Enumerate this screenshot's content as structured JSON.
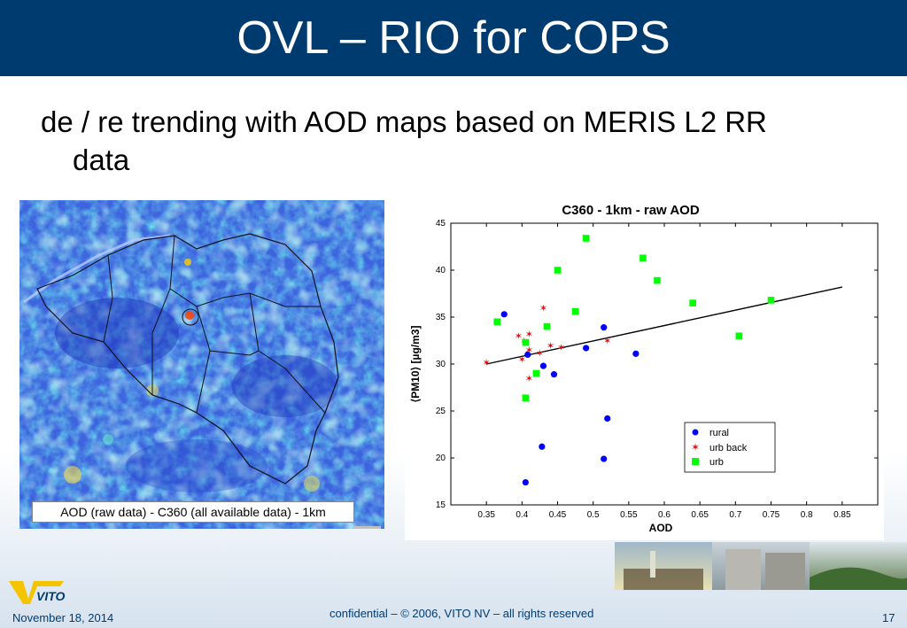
{
  "slide": {
    "title": "OVL – RIO for COPS",
    "bullet_line1": "de / re trending with AOD maps based on MERIS L2 RR",
    "bullet_line2": "data",
    "map_caption": "AOD (raw data) - C360 (all available data) - 1km",
    "footer_date": "November 18, 2014",
    "footer_confidential": "confidential – © 2006, VITO NV – all rights reserved",
    "page_number": "17",
    "logo_text": "VITO"
  },
  "colors": {
    "title_bar": "#003b6f",
    "rural": "#0000ff",
    "urb_back": "#ff0000",
    "urb": "#00ff00",
    "map_base": "#3a5fe0"
  },
  "chart_data": {
    "type": "scatter",
    "title": "C360 - 1km - raw  AOD",
    "xlabel": "AOD",
    "ylabel": "⟨PM10⟩ [µg/m3]",
    "xlim": [
      0.3,
      0.9
    ],
    "ylim": [
      15,
      45
    ],
    "xticks": [
      "0.35",
      "0.4",
      "0.45",
      "0.5",
      "0.55",
      "0.6",
      "0.65",
      "0.7",
      "0.75",
      "0.8",
      "0.85"
    ],
    "yticks": [
      "15",
      "20",
      "25",
      "30",
      "35",
      "40",
      "45"
    ],
    "legend_position": "lower-right",
    "series": [
      {
        "name": "rural",
        "marker": "circle",
        "points": [
          [
            0.375,
            35.3
          ],
          [
            0.408,
            31.0
          ],
          [
            0.43,
            29.8
          ],
          [
            0.445,
            28.9
          ],
          [
            0.49,
            31.7
          ],
          [
            0.515,
            33.9
          ],
          [
            0.52,
            24.2
          ],
          [
            0.56,
            31.1
          ],
          [
            0.428,
            21.2
          ],
          [
            0.515,
            19.9
          ],
          [
            0.405,
            17.4
          ]
        ]
      },
      {
        "name": "urb back",
        "marker": "star",
        "points": [
          [
            0.35,
            30.2
          ],
          [
            0.395,
            33.0
          ],
          [
            0.403,
            32.5
          ],
          [
            0.41,
            33.2
          ],
          [
            0.41,
            31.5
          ],
          [
            0.43,
            36.0
          ],
          [
            0.44,
            32.0
          ],
          [
            0.455,
            31.8
          ],
          [
            0.4,
            30.5
          ],
          [
            0.41,
            28.5
          ],
          [
            0.52,
            32.5
          ],
          [
            0.425,
            31.2
          ]
        ]
      },
      {
        "name": "urb",
        "marker": "square",
        "points": [
          [
            0.365,
            34.5
          ],
          [
            0.405,
            32.3
          ],
          [
            0.42,
            29.0
          ],
          [
            0.405,
            26.4
          ],
          [
            0.435,
            34.0
          ],
          [
            0.45,
            40.0
          ],
          [
            0.475,
            35.6
          ],
          [
            0.49,
            43.4
          ],
          [
            0.57,
            41.3
          ],
          [
            0.59,
            38.9
          ],
          [
            0.64,
            36.5
          ],
          [
            0.705,
            33.0
          ],
          [
            0.75,
            36.8
          ]
        ]
      }
    ],
    "trend_line": [
      [
        0.35,
        30.0
      ],
      [
        0.85,
        38.2
      ]
    ]
  }
}
